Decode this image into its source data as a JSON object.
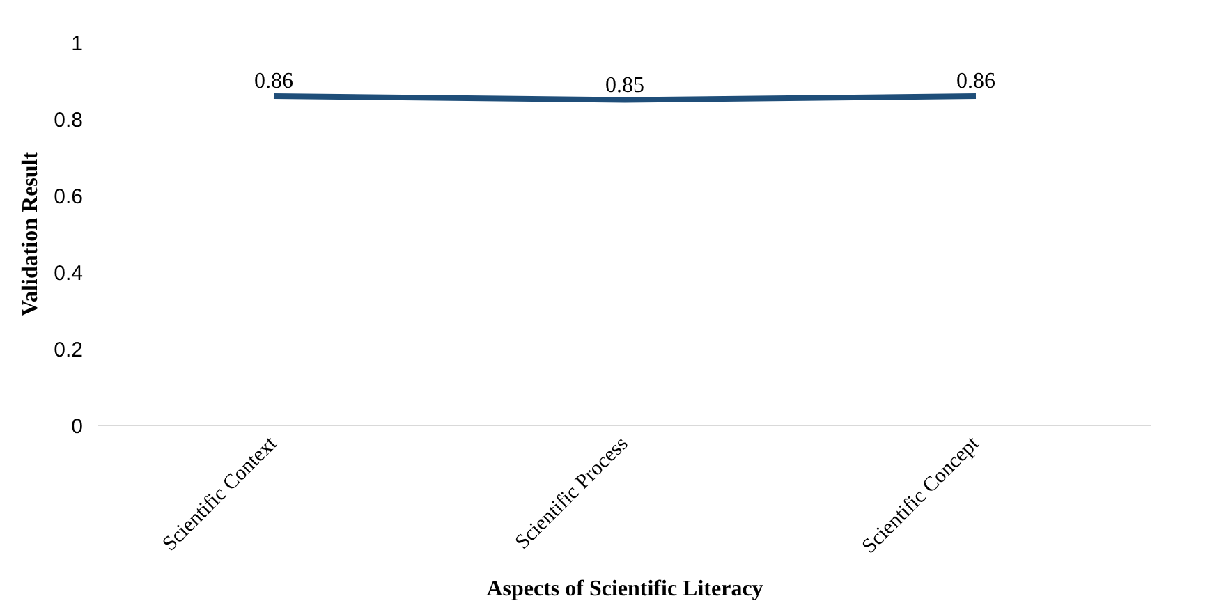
{
  "chart_data": {
    "type": "line",
    "xlabel": "Aspects of Scientific Literacy",
    "ylabel": "Validation Result",
    "categories": [
      "Scientific Context",
      "Scientific Process",
      "Scientific Concept"
    ],
    "series": [
      {
        "color": "#1f4e79",
        "values": [
          0.86,
          0.85,
          0.86
        ]
      }
    ],
    "ylim": [
      0,
      1
    ],
    "yticks": [
      0,
      0.2,
      0.4,
      0.6,
      0.8,
      1
    ],
    "grid": false,
    "marker": "none",
    "line_style": "solid",
    "data_labels": true
  }
}
